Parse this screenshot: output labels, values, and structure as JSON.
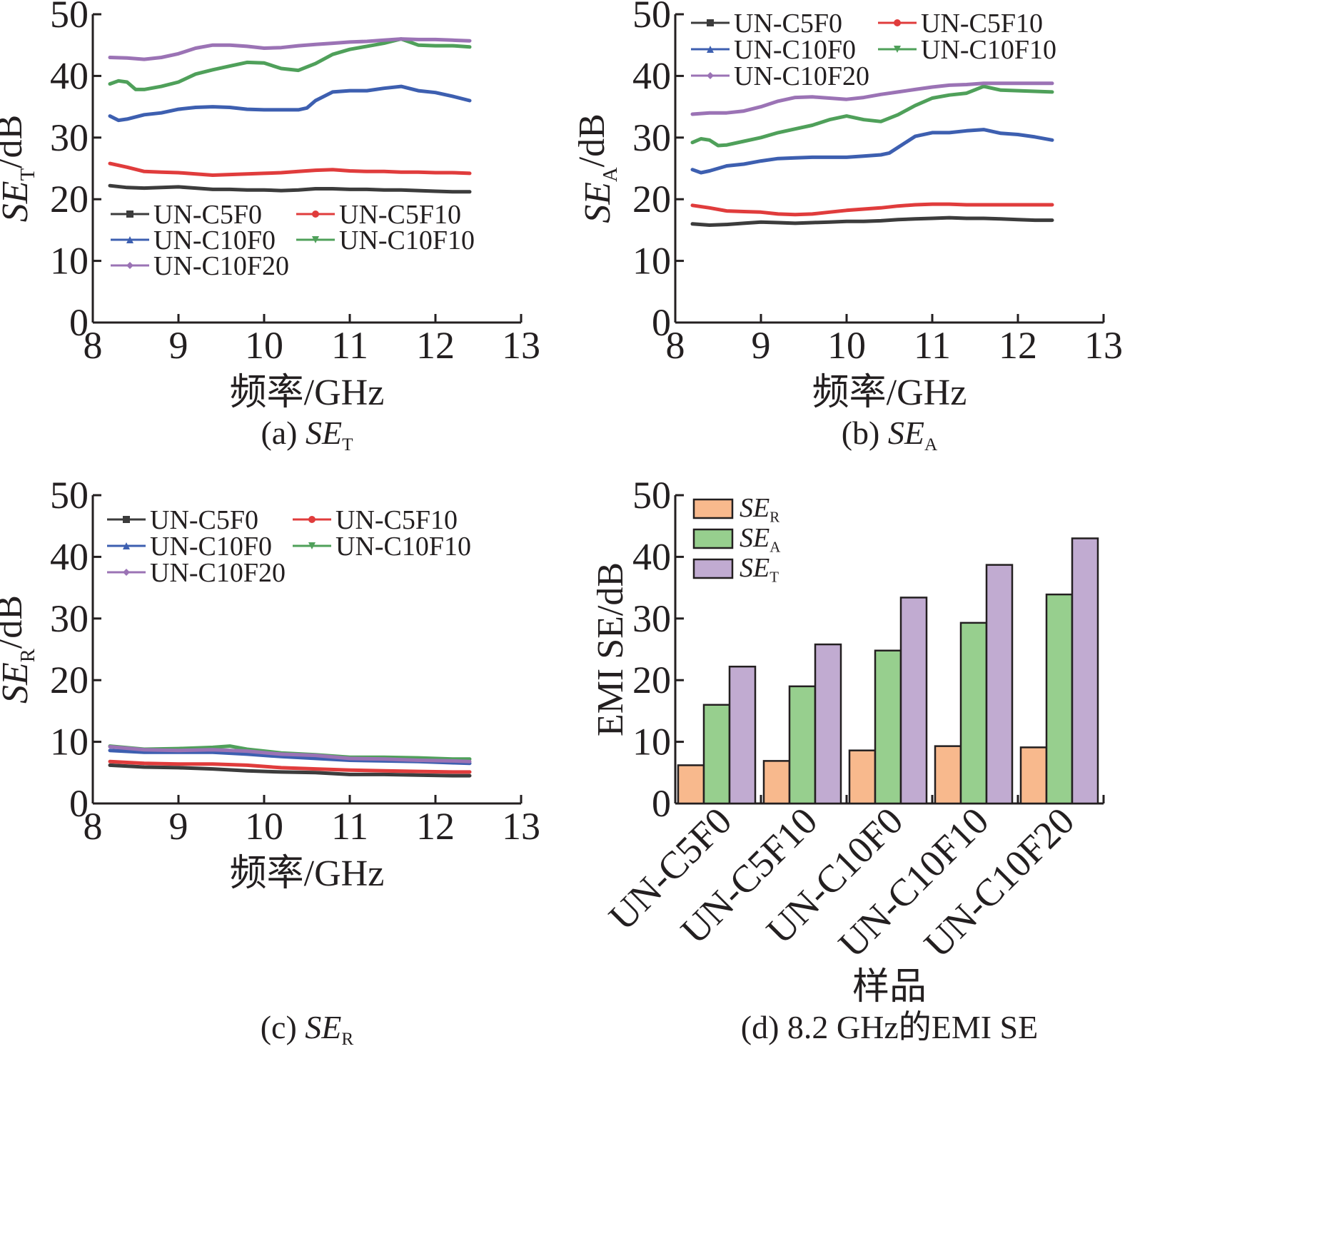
{
  "chart_data": [
    {
      "id": "a",
      "type": "line",
      "caption": {
        "prefix": "(a) ",
        "main": "SE",
        "sub": "T"
      },
      "ylabel": {
        "main": "SE",
        "sub": "T",
        "suffix": "/dB"
      },
      "xlabel": "频率/GHz",
      "xlim": [
        8,
        13
      ],
      "ylim": [
        0,
        50
      ],
      "xticks": [
        8,
        9,
        10,
        11,
        12,
        13
      ],
      "yticks": [
        0,
        10,
        20,
        30,
        40,
        50
      ],
      "legend_position": "lower-left",
      "series": [
        {
          "name": "UN-C5F0",
          "color": "#3c3c3c",
          "marker": "square",
          "x": [
            8.2,
            8.4,
            8.6,
            8.8,
            9.0,
            9.2,
            9.4,
            9.6,
            9.8,
            10.0,
            10.2,
            10.4,
            10.6,
            10.8,
            11.0,
            11.2,
            11.4,
            11.6,
            11.8,
            12.0,
            12.2,
            12.4
          ],
          "y": [
            22.2,
            21.9,
            21.8,
            21.9,
            22.0,
            21.8,
            21.6,
            21.6,
            21.5,
            21.5,
            21.4,
            21.5,
            21.7,
            21.7,
            21.6,
            21.6,
            21.5,
            21.5,
            21.4,
            21.3,
            21.2,
            21.2
          ]
        },
        {
          "name": "UN-C5F10",
          "color": "#e03c3c",
          "marker": "circle",
          "x": [
            8.2,
            8.4,
            8.6,
            8.8,
            9.0,
            9.2,
            9.4,
            9.6,
            9.8,
            10.0,
            10.2,
            10.4,
            10.6,
            10.8,
            11.0,
            11.2,
            11.4,
            11.6,
            11.8,
            12.0,
            12.2,
            12.4
          ],
          "y": [
            25.8,
            25.2,
            24.5,
            24.4,
            24.3,
            24.1,
            23.9,
            24.0,
            24.1,
            24.2,
            24.3,
            24.5,
            24.7,
            24.8,
            24.6,
            24.5,
            24.5,
            24.4,
            24.4,
            24.3,
            24.3,
            24.2
          ]
        },
        {
          "name": "UN-C10F0",
          "color": "#3d5fb0",
          "marker": "triangle",
          "x": [
            8.2,
            8.3,
            8.4,
            8.6,
            8.8,
            9.0,
            9.2,
            9.4,
            9.6,
            9.8,
            10.0,
            10.2,
            10.4,
            10.5,
            10.6,
            10.8,
            11.0,
            11.2,
            11.4,
            11.6,
            11.8,
            12.0,
            12.2,
            12.4
          ],
          "y": [
            33.5,
            32.8,
            33.0,
            33.7,
            34.0,
            34.6,
            34.9,
            35.0,
            34.9,
            34.6,
            34.5,
            34.5,
            34.5,
            34.8,
            36.0,
            37.4,
            37.6,
            37.6,
            38.0,
            38.3,
            37.6,
            37.3,
            36.7,
            36.0
          ]
        },
        {
          "name": "UN-C10F10",
          "color": "#4fa05a",
          "marker": "triangle-down",
          "x": [
            8.2,
            8.3,
            8.4,
            8.5,
            8.6,
            8.8,
            9.0,
            9.2,
            9.4,
            9.6,
            9.8,
            10.0,
            10.2,
            10.4,
            10.6,
            10.8,
            11.0,
            11.2,
            11.4,
            11.6,
            11.8,
            12.0,
            12.2,
            12.4
          ],
          "y": [
            38.7,
            39.2,
            39.0,
            37.8,
            37.8,
            38.3,
            39.0,
            40.3,
            41.0,
            41.6,
            42.2,
            42.1,
            41.2,
            40.9,
            42.0,
            43.5,
            44.3,
            44.8,
            45.3,
            46.0,
            45.0,
            44.9,
            44.9,
            44.7
          ]
        },
        {
          "name": "UN-C10F20",
          "color": "#9b73b5",
          "marker": "diamond",
          "x": [
            8.2,
            8.4,
            8.6,
            8.8,
            9.0,
            9.2,
            9.4,
            9.6,
            9.8,
            10.0,
            10.2,
            10.4,
            10.6,
            10.8,
            11.0,
            11.2,
            11.4,
            11.6,
            11.8,
            12.0,
            12.2,
            12.4
          ],
          "y": [
            43.0,
            42.9,
            42.7,
            43.0,
            43.6,
            44.5,
            45.0,
            45.0,
            44.8,
            44.5,
            44.6,
            44.9,
            45.1,
            45.3,
            45.5,
            45.6,
            45.8,
            46.0,
            45.9,
            45.9,
            45.8,
            45.7
          ]
        }
      ]
    },
    {
      "id": "b",
      "type": "line",
      "caption": {
        "prefix": "(b) ",
        "main": "SE",
        "sub": "A"
      },
      "ylabel": {
        "main": "SE",
        "sub": "A",
        "suffix": "/dB"
      },
      "xlabel": "频率/GHz",
      "xlim": [
        8,
        13
      ],
      "ylim": [
        0,
        50
      ],
      "xticks": [
        8,
        9,
        10,
        11,
        12,
        13
      ],
      "yticks": [
        0,
        10,
        20,
        30,
        40,
        50
      ],
      "legend_position": "top-left",
      "series": [
        {
          "name": "UN-C5F0",
          "color": "#3c3c3c",
          "marker": "square",
          "x": [
            8.2,
            8.4,
            8.6,
            8.8,
            9.0,
            9.2,
            9.4,
            9.6,
            9.8,
            10.0,
            10.2,
            10.4,
            10.6,
            10.8,
            11.0,
            11.2,
            11.4,
            11.6,
            11.8,
            12.0,
            12.2,
            12.4
          ],
          "y": [
            16.0,
            15.8,
            15.9,
            16.1,
            16.3,
            16.2,
            16.1,
            16.2,
            16.3,
            16.4,
            16.4,
            16.5,
            16.7,
            16.8,
            16.9,
            17.0,
            16.9,
            16.9,
            16.8,
            16.7,
            16.6,
            16.6
          ]
        },
        {
          "name": "UN-C5F10",
          "color": "#e03c3c",
          "marker": "circle",
          "x": [
            8.2,
            8.4,
            8.6,
            8.8,
            9.0,
            9.2,
            9.4,
            9.6,
            9.8,
            10.0,
            10.2,
            10.4,
            10.6,
            10.8,
            11.0,
            11.2,
            11.4,
            11.6,
            11.8,
            12.0,
            12.2,
            12.4
          ],
          "y": [
            19.0,
            18.6,
            18.1,
            18.0,
            17.9,
            17.6,
            17.5,
            17.6,
            17.9,
            18.2,
            18.4,
            18.6,
            18.9,
            19.1,
            19.2,
            19.2,
            19.1,
            19.1,
            19.1,
            19.1,
            19.1,
            19.1
          ]
        },
        {
          "name": "UN-C10F0",
          "color": "#3d5fb0",
          "marker": "triangle",
          "x": [
            8.2,
            8.3,
            8.4,
            8.6,
            8.8,
            9.0,
            9.2,
            9.4,
            9.6,
            9.8,
            10.0,
            10.2,
            10.4,
            10.5,
            10.6,
            10.8,
            11.0,
            11.2,
            11.4,
            11.6,
            11.8,
            12.0,
            12.2,
            12.4
          ],
          "y": [
            24.8,
            24.3,
            24.6,
            25.4,
            25.7,
            26.2,
            26.6,
            26.7,
            26.8,
            26.8,
            26.8,
            27.0,
            27.2,
            27.5,
            28.4,
            30.2,
            30.8,
            30.8,
            31.1,
            31.3,
            30.7,
            30.5,
            30.1,
            29.6
          ]
        },
        {
          "name": "UN-C10F10",
          "color": "#4fa05a",
          "marker": "triangle-down",
          "x": [
            8.2,
            8.3,
            8.4,
            8.5,
            8.6,
            8.8,
            9.0,
            9.2,
            9.4,
            9.6,
            9.8,
            10.0,
            10.2,
            10.4,
            10.6,
            10.8,
            11.0,
            11.2,
            11.4,
            11.6,
            11.8,
            12.0,
            12.2,
            12.4
          ],
          "y": [
            29.2,
            29.8,
            29.6,
            28.7,
            28.8,
            29.4,
            30.0,
            30.8,
            31.4,
            32.0,
            32.9,
            33.5,
            32.9,
            32.6,
            33.7,
            35.2,
            36.4,
            36.9,
            37.2,
            38.3,
            37.7,
            37.6,
            37.5,
            37.4
          ]
        },
        {
          "name": "UN-C10F20",
          "color": "#9b73b5",
          "marker": "diamond",
          "x": [
            8.2,
            8.4,
            8.6,
            8.8,
            9.0,
            9.2,
            9.4,
            9.6,
            9.8,
            10.0,
            10.2,
            10.4,
            10.6,
            10.8,
            11.0,
            11.2,
            11.4,
            11.6,
            11.8,
            12.0,
            12.2,
            12.4
          ],
          "y": [
            33.8,
            34.0,
            34.0,
            34.3,
            35.0,
            35.9,
            36.5,
            36.6,
            36.4,
            36.2,
            36.5,
            37.0,
            37.4,
            37.8,
            38.2,
            38.5,
            38.6,
            38.8,
            38.8,
            38.8,
            38.8,
            38.8
          ]
        }
      ]
    },
    {
      "id": "c",
      "type": "line",
      "caption": {
        "prefix": "(c) ",
        "main": "SE",
        "sub": "R"
      },
      "ylabel": {
        "main": "SE",
        "sub": "R",
        "suffix": "/dB"
      },
      "xlabel": "频率/GHz",
      "xlim": [
        8,
        13
      ],
      "ylim": [
        0,
        50
      ],
      "xticks": [
        8,
        9,
        10,
        11,
        12,
        13
      ],
      "yticks": [
        0,
        10,
        20,
        30,
        40,
        50
      ],
      "legend_position": "top-left",
      "series": [
        {
          "name": "UN-C5F0",
          "color": "#3c3c3c",
          "marker": "square",
          "x": [
            8.2,
            8.6,
            9.0,
            9.4,
            9.8,
            10.2,
            10.6,
            11.0,
            11.4,
            11.8,
            12.2,
            12.4
          ],
          "y": [
            6.2,
            5.9,
            5.8,
            5.6,
            5.3,
            5.1,
            5.0,
            4.7,
            4.7,
            4.6,
            4.5,
            4.5
          ]
        },
        {
          "name": "UN-C5F10",
          "color": "#e03c3c",
          "marker": "circle",
          "x": [
            8.2,
            8.6,
            9.0,
            9.4,
            9.8,
            10.2,
            10.6,
            11.0,
            11.4,
            11.8,
            12.2,
            12.4
          ],
          "y": [
            6.8,
            6.5,
            6.4,
            6.4,
            6.2,
            5.8,
            5.6,
            5.4,
            5.3,
            5.2,
            5.1,
            5.1
          ]
        },
        {
          "name": "UN-C10F0",
          "color": "#3d5fb0",
          "marker": "triangle",
          "x": [
            8.2,
            8.6,
            9.0,
            9.4,
            9.8,
            10.2,
            10.6,
            11.0,
            11.4,
            11.8,
            12.2,
            12.4
          ],
          "y": [
            8.6,
            8.3,
            8.3,
            8.3,
            8.0,
            7.6,
            7.3,
            7.0,
            6.9,
            6.8,
            6.6,
            6.5
          ]
        },
        {
          "name": "UN-C10F10",
          "color": "#4fa05a",
          "marker": "triangle-down",
          "x": [
            8.2,
            8.6,
            9.0,
            9.4,
            9.6,
            9.8,
            10.2,
            10.6,
            11.0,
            11.4,
            11.8,
            12.2,
            12.4
          ],
          "y": [
            9.3,
            8.8,
            8.9,
            9.1,
            9.3,
            8.8,
            8.2,
            7.9,
            7.5,
            7.5,
            7.4,
            7.2,
            7.2
          ]
        },
        {
          "name": "UN-C10F20",
          "color": "#9b73b5",
          "marker": "diamond",
          "x": [
            8.2,
            8.6,
            9.0,
            9.4,
            9.8,
            10.2,
            10.6,
            11.0,
            11.4,
            11.8,
            12.2,
            12.4
          ],
          "y": [
            9.2,
            8.7,
            8.6,
            8.7,
            8.5,
            8.0,
            7.8,
            7.3,
            7.2,
            7.0,
            6.9,
            6.8
          ]
        }
      ]
    },
    {
      "id": "d",
      "type": "bar",
      "caption": {
        "text": "(d) 8.2 GHz的EMI SE"
      },
      "ylabel": "EMI SE/dB",
      "xlabel": "样品",
      "ylim": [
        0,
        50
      ],
      "yticks": [
        0,
        10,
        20,
        30,
        40,
        50
      ],
      "legend_position": "top-left",
      "categories": [
        "UN-C5F0",
        "UN-C5F10",
        "UN-C10F0",
        "UN-C10F10",
        "UN-C10F20"
      ],
      "series": [
        {
          "name_main": "SE",
          "name_sub": "R",
          "color": "#f8b98d",
          "values": [
            6.2,
            6.9,
            8.6,
            9.3,
            9.1
          ]
        },
        {
          "name_main": "SE",
          "name_sub": "A",
          "color": "#97cf8e",
          "values": [
            16.0,
            19.0,
            24.8,
            29.3,
            33.9
          ]
        },
        {
          "name_main": "SE",
          "name_sub": "T",
          "color": "#c1abd1",
          "values": [
            22.2,
            25.8,
            33.4,
            38.7,
            43.0
          ]
        }
      ]
    }
  ]
}
